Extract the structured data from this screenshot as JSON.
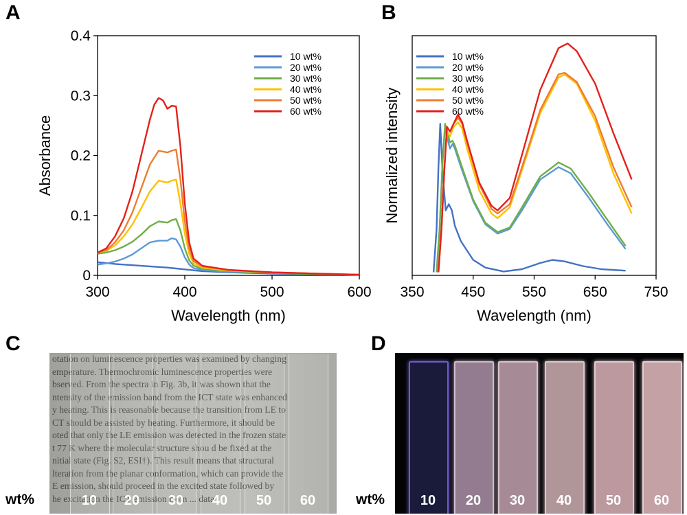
{
  "panels": {
    "a": "A",
    "b": "B",
    "c": "C",
    "d": "D"
  },
  "chart_data": [
    {
      "type": "line",
      "xlabel": "Wavelength (nm)",
      "ylabel": "Absorbance",
      "xlim": [
        300,
        600
      ],
      "ylim": [
        0,
        0.4
      ],
      "xticks": [
        300,
        400,
        500,
        600
      ],
      "yticks": [
        0,
        0.1,
        0.2,
        0.3,
        0.4
      ],
      "ytick_labels": [
        "0",
        "0.1",
        "0.2",
        "0.3",
        "0.4"
      ],
      "legend_position": "top-right",
      "series": [
        {
          "name": "10 wt%",
          "color": "#4472c4",
          "x": [
            300,
            320,
            340,
            360,
            380,
            400,
            420,
            450,
            500,
            550,
            600
          ],
          "y": [
            0.022,
            0.019,
            0.017,
            0.015,
            0.013,
            0.01,
            0.007,
            0.005,
            0.003,
            0.002,
            0.001
          ]
        },
        {
          "name": "20 wt%",
          "color": "#5b9bd5",
          "x": [
            300,
            310,
            320,
            330,
            340,
            350,
            360,
            370,
            380,
            385,
            390,
            395,
            400,
            405,
            410,
            420,
            450,
            500,
            550,
            600
          ],
          "y": [
            0.018,
            0.02,
            0.023,
            0.028,
            0.035,
            0.045,
            0.055,
            0.058,
            0.058,
            0.062,
            0.06,
            0.048,
            0.03,
            0.018,
            0.012,
            0.009,
            0.006,
            0.004,
            0.002,
            0.001
          ]
        },
        {
          "name": "30 wt%",
          "color": "#70ad47",
          "x": [
            300,
            310,
            320,
            330,
            340,
            350,
            360,
            370,
            380,
            385,
            390,
            395,
            400,
            405,
            410,
            420,
            450,
            500,
            550,
            600
          ],
          "y": [
            0.036,
            0.038,
            0.042,
            0.048,
            0.056,
            0.068,
            0.082,
            0.09,
            0.088,
            0.092,
            0.094,
            0.075,
            0.045,
            0.025,
            0.016,
            0.011,
            0.007,
            0.004,
            0.002,
            0.001
          ]
        },
        {
          "name": "40 wt%",
          "color": "#ffc000",
          "x": [
            300,
            310,
            320,
            330,
            340,
            350,
            360,
            370,
            380,
            385,
            390,
            395,
            400,
            405,
            410,
            420,
            450,
            500,
            550,
            600
          ],
          "y": [
            0.038,
            0.041,
            0.05,
            0.065,
            0.085,
            0.112,
            0.14,
            0.158,
            0.155,
            0.158,
            0.16,
            0.12,
            0.07,
            0.036,
            0.02,
            0.013,
            0.008,
            0.005,
            0.003,
            0.001
          ]
        },
        {
          "name": "50 wt%",
          "color": "#ed7d31",
          "x": [
            300,
            310,
            320,
            330,
            340,
            350,
            360,
            370,
            380,
            385,
            390,
            395,
            400,
            405,
            410,
            420,
            450,
            500,
            550,
            600
          ],
          "y": [
            0.038,
            0.042,
            0.055,
            0.075,
            0.105,
            0.145,
            0.185,
            0.208,
            0.205,
            0.208,
            0.21,
            0.16,
            0.09,
            0.045,
            0.024,
            0.015,
            0.009,
            0.005,
            0.003,
            0.001
          ]
        },
        {
          "name": "60 wt%",
          "color": "#e3211c",
          "x": [
            300,
            310,
            320,
            330,
            340,
            350,
            360,
            365,
            370,
            375,
            380,
            385,
            390,
            395,
            400,
            405,
            410,
            420,
            450,
            500,
            550,
            600
          ],
          "y": [
            0.038,
            0.045,
            0.065,
            0.095,
            0.14,
            0.2,
            0.26,
            0.285,
            0.296,
            0.292,
            0.278,
            0.283,
            0.282,
            0.215,
            0.12,
            0.055,
            0.028,
            0.016,
            0.009,
            0.005,
            0.003,
            0.001
          ]
        }
      ]
    },
    {
      "type": "line",
      "xlabel": "Wavelength (nm)",
      "ylabel": "Normalized intensity",
      "xlim": [
        350,
        750
      ],
      "ylim": [
        0,
        1.55
      ],
      "xticks": [
        350,
        450,
        550,
        650,
        750
      ],
      "legend_position": "top-left",
      "series": [
        {
          "name": "10 wt%",
          "color": "#4472c4",
          "x": [
            385,
            390,
            393,
            396,
            400,
            405,
            410,
            415,
            420,
            430,
            450,
            470,
            500,
            530,
            560,
            580,
            600,
            630,
            660,
            700
          ],
          "y": [
            0.02,
            0.3,
            0.7,
            0.98,
            0.65,
            0.42,
            0.46,
            0.42,
            0.32,
            0.22,
            0.1,
            0.05,
            0.025,
            0.04,
            0.08,
            0.1,
            0.09,
            0.06,
            0.04,
            0.03
          ]
        },
        {
          "name": "20 wt%",
          "color": "#5b9bd5",
          "x": [
            390,
            395,
            400,
            404,
            408,
            412,
            416,
            420,
            430,
            450,
            470,
            490,
            510,
            530,
            560,
            590,
            610,
            640,
            670,
            700
          ],
          "y": [
            0.02,
            0.3,
            0.75,
            0.96,
            0.88,
            0.82,
            0.85,
            0.82,
            0.7,
            0.48,
            0.33,
            0.27,
            0.3,
            0.42,
            0.62,
            0.7,
            0.66,
            0.5,
            0.33,
            0.17
          ]
        },
        {
          "name": "30 wt%",
          "color": "#70ad47",
          "x": [
            390,
            395,
            400,
            404,
            408,
            412,
            416,
            420,
            430,
            450,
            470,
            490,
            510,
            530,
            560,
            590,
            610,
            640,
            670,
            700
          ],
          "y": [
            0.02,
            0.3,
            0.75,
            0.98,
            0.92,
            0.86,
            0.87,
            0.84,
            0.72,
            0.49,
            0.34,
            0.28,
            0.31,
            0.44,
            0.64,
            0.73,
            0.69,
            0.53,
            0.36,
            0.19
          ]
        },
        {
          "name": "40 wt%",
          "color": "#ffc000",
          "x": [
            393,
            398,
            403,
            407,
            412,
            418,
            425,
            432,
            440,
            460,
            480,
            490,
            510,
            530,
            560,
            590,
            600,
            620,
            650,
            680,
            710
          ],
          "y": [
            0.02,
            0.3,
            0.7,
            0.93,
            0.9,
            0.96,
            0.99,
            0.95,
            0.82,
            0.55,
            0.4,
            0.37,
            0.44,
            0.68,
            1.05,
            1.28,
            1.3,
            1.24,
            1.0,
            0.66,
            0.4
          ]
        },
        {
          "name": "50 wt%",
          "color": "#ed7d31",
          "x": [
            393,
            398,
            403,
            407,
            412,
            418,
            425,
            432,
            440,
            460,
            480,
            490,
            510,
            530,
            560,
            590,
            600,
            620,
            650,
            680,
            710
          ],
          "y": [
            0.02,
            0.3,
            0.7,
            0.96,
            0.93,
            0.98,
            1.02,
            0.98,
            0.86,
            0.59,
            0.43,
            0.4,
            0.46,
            0.7,
            1.07,
            1.3,
            1.31,
            1.25,
            1.03,
            0.7,
            0.44
          ]
        },
        {
          "name": "60 wt%",
          "color": "#e3211c",
          "x": [
            393,
            398,
            403,
            407,
            412,
            418,
            425,
            432,
            440,
            460,
            480,
            490,
            510,
            530,
            560,
            590,
            605,
            620,
            650,
            680,
            710
          ],
          "y": [
            0.02,
            0.3,
            0.7,
            0.96,
            0.93,
            0.98,
            1.04,
            0.99,
            0.87,
            0.6,
            0.45,
            0.42,
            0.5,
            0.78,
            1.2,
            1.47,
            1.5,
            1.45,
            1.24,
            0.92,
            0.62
          ]
        }
      ]
    }
  ],
  "photo_c": {
    "paper_lines": [
      "otation on luminescence properties was examined by changing",
      "emperature. Thermochromic luminescence properties were",
      "bserved. From the spectra in Fig. 3b, it was shown that the",
      "ntensity of the emission band from the ICT state was enhanced",
      "y heating. This is reasonable because the transition from LE to",
      "CT should be assisted by heating. Furthermore, it should be",
      "oted that only the LE emission was detected in the frozen state",
      "t 77 K where the molecular structure shou d be fixed at the",
      "nitial state (Fig. S2, ESI†). This result means that structural",
      "lteration from the planar conformation, which can provide the",
      "E emission, should proceed in the excited state followed by",
      "he excitation the ICT emission from ... data"
    ],
    "wt_label": "wt%",
    "numbers": [
      "10",
      "20",
      "30",
      "40",
      "50",
      "60"
    ]
  },
  "photo_d": {
    "wt_label": "wt%",
    "numbers": [
      "10",
      "20",
      "30",
      "40",
      "50",
      "60"
    ],
    "strip_colors": [
      "#1a1a3a",
      "#a48aa0",
      "#b89aa6",
      "#c4a6aa",
      "#cfaab0",
      "#d8b2b6"
    ],
    "edge_colors": [
      "#6a5cd0",
      "#e2cfe0",
      "#eed8e2",
      "#f2dde0",
      "#f6e0e4",
      "#f8e4e8"
    ]
  }
}
